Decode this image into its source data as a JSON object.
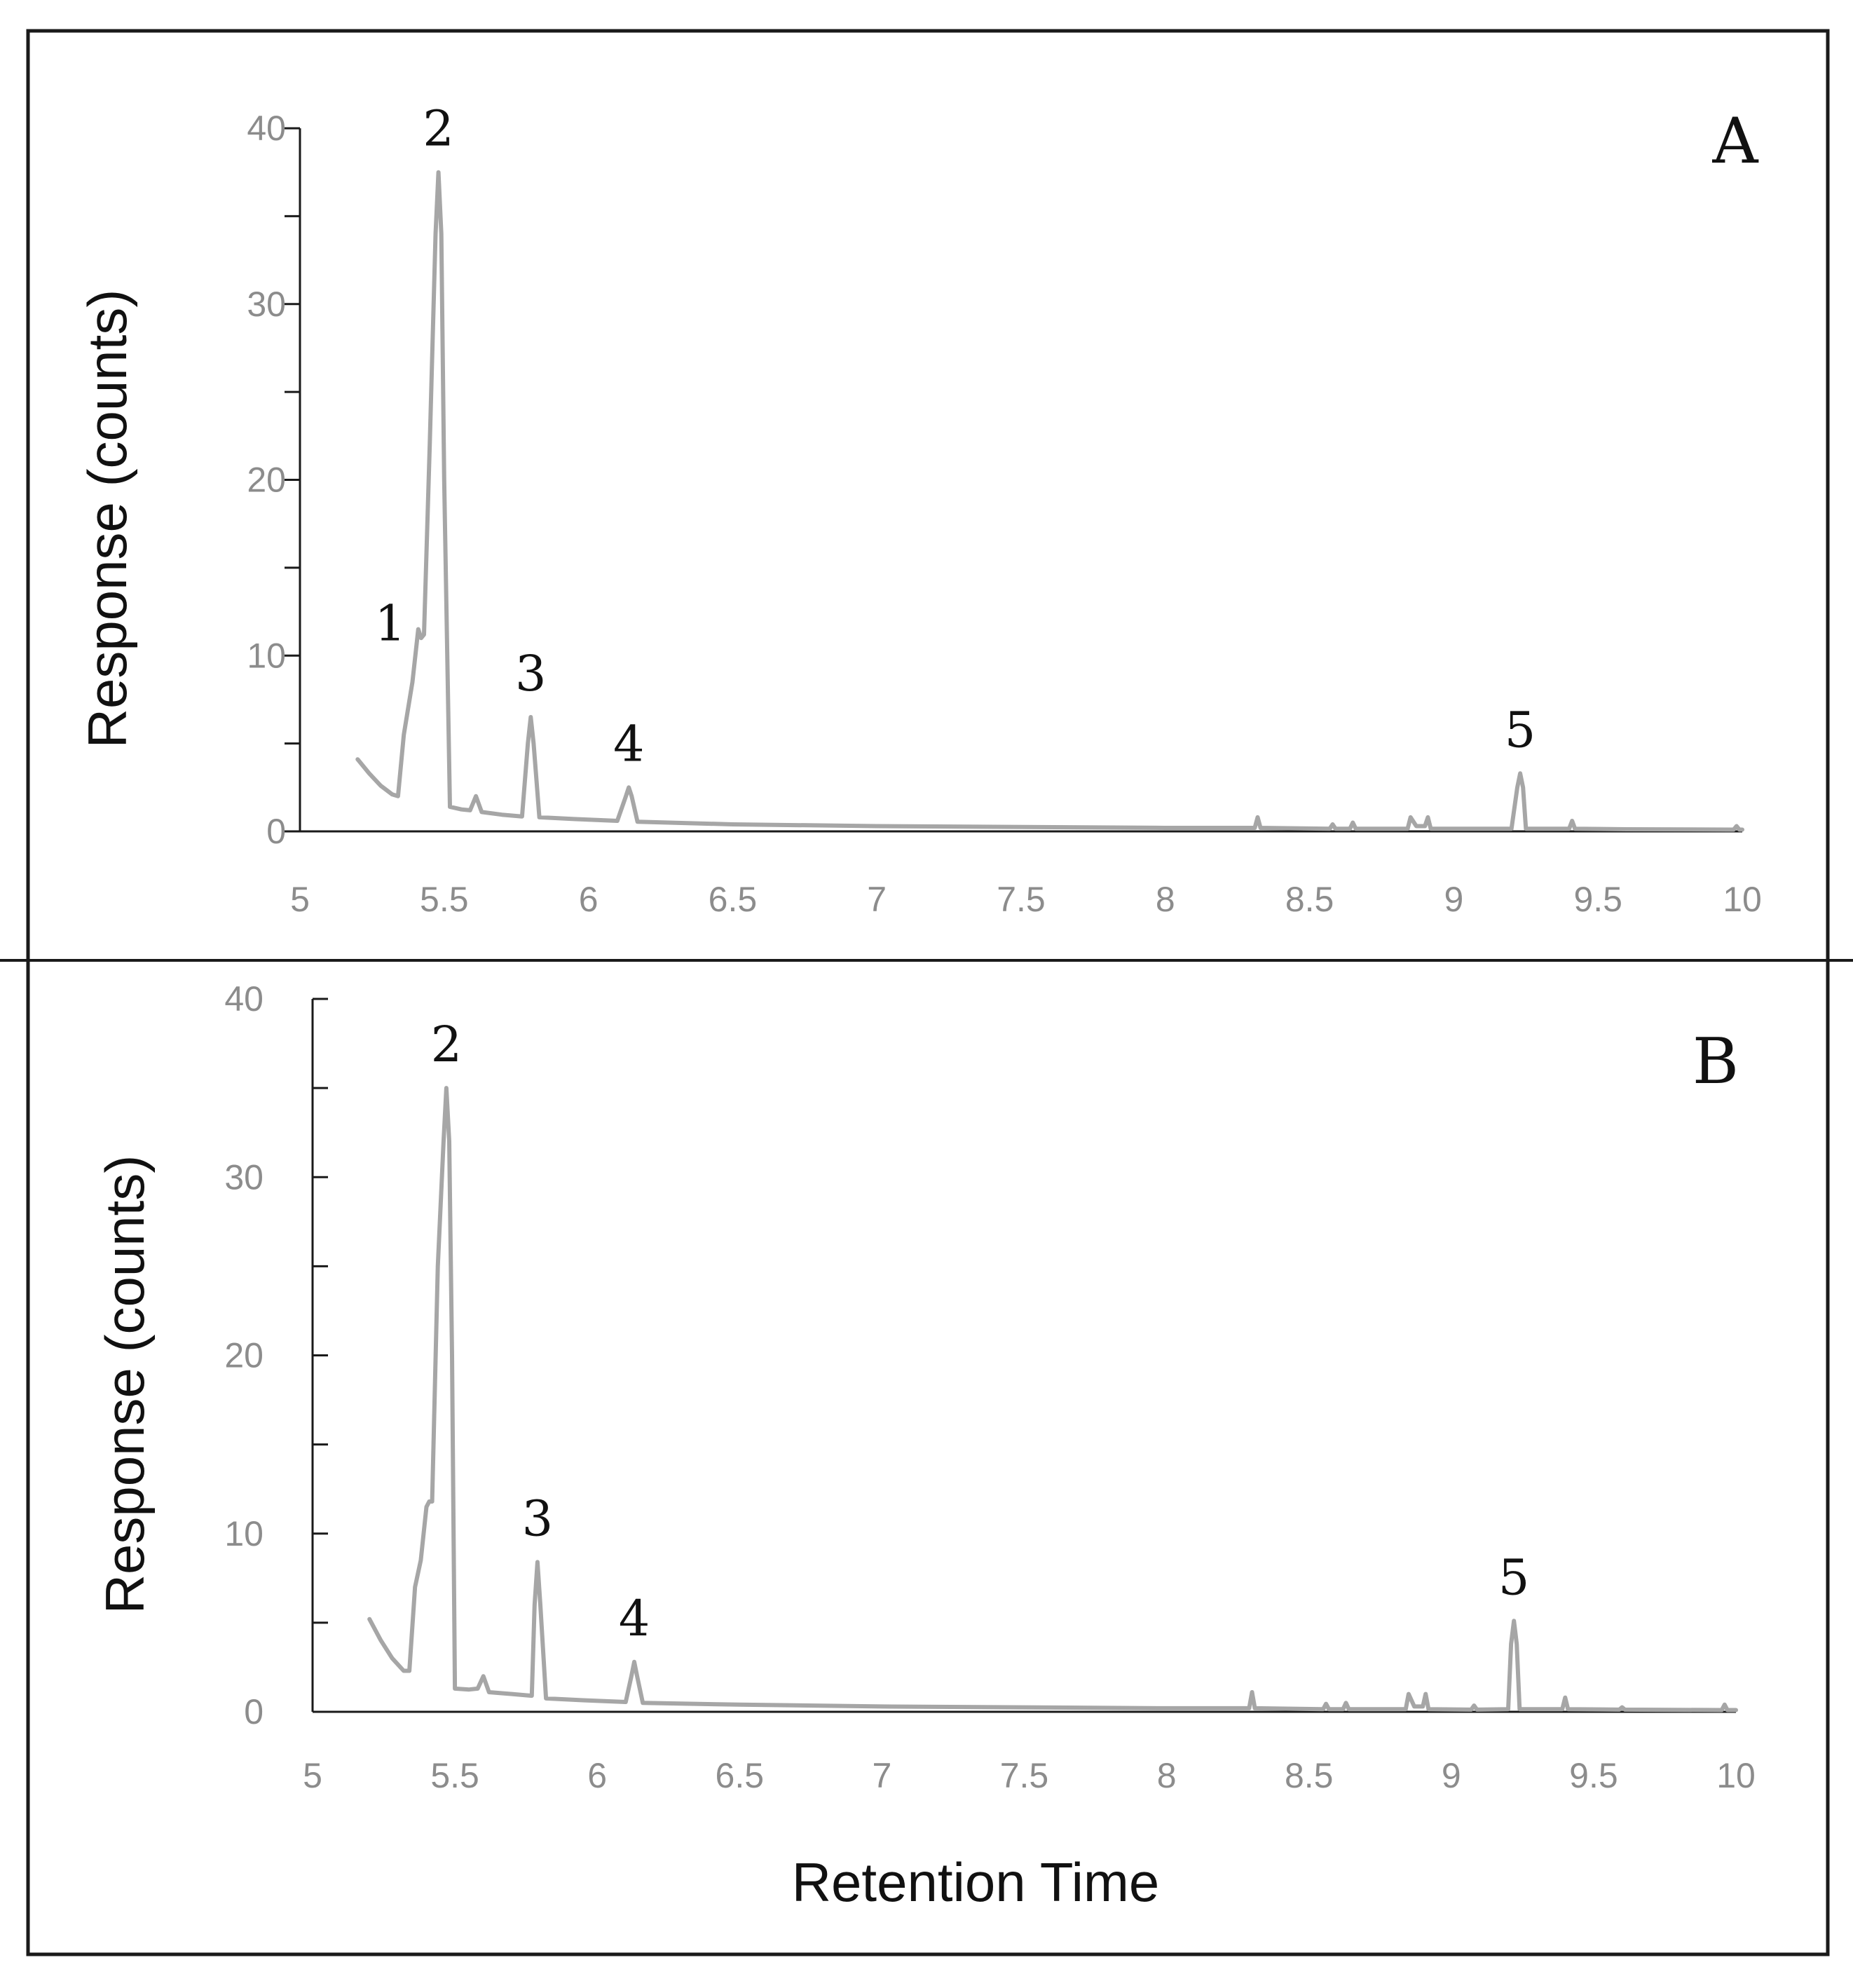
{
  "chart_data": [
    {
      "type": "line",
      "panel": "A",
      "xlabel": "",
      "ylabel": "Response (counts)",
      "xlim": [
        5,
        10
      ],
      "ylim": [
        0,
        40
      ],
      "x_ticks": [
        "5",
        "5.5",
        "6",
        "6.5",
        "7",
        "7.5",
        "8",
        "8.5",
        "9",
        "9.5",
        "10"
      ],
      "y_ticks": [
        "0",
        "10",
        "20",
        "30",
        "40"
      ],
      "peaks": [
        {
          "label": "1",
          "x": 5.41,
          "y": 11.5
        },
        {
          "label": "2",
          "x": 5.48,
          "y": 37.5
        },
        {
          "label": "3",
          "x": 5.8,
          "y": 6.5
        },
        {
          "label": "4",
          "x": 6.14,
          "y": 2.5
        },
        {
          "label": "5",
          "x": 9.23,
          "y": 3.3
        }
      ],
      "trace": [
        [
          5.2,
          4.1
        ],
        [
          5.24,
          3.3
        ],
        [
          5.28,
          2.6
        ],
        [
          5.32,
          2.1
        ],
        [
          5.34,
          2.0
        ],
        [
          5.36,
          5.5
        ],
        [
          5.39,
          8.5
        ],
        [
          5.41,
          11.5
        ],
        [
          5.42,
          11.0
        ],
        [
          5.43,
          11.2
        ],
        [
          5.45,
          22.0
        ],
        [
          5.47,
          34.0
        ],
        [
          5.48,
          37.5
        ],
        [
          5.49,
          34.0
        ],
        [
          5.5,
          20.0
        ],
        [
          5.52,
          1.4
        ],
        [
          5.56,
          1.25
        ],
        [
          5.59,
          1.2
        ],
        [
          5.61,
          2.0
        ],
        [
          5.63,
          1.1
        ],
        [
          5.7,
          0.95
        ],
        [
          5.77,
          0.85
        ],
        [
          5.79,
          5.0
        ],
        [
          5.8,
          6.5
        ],
        [
          5.81,
          5.0
        ],
        [
          5.83,
          0.8
        ],
        [
          5.95,
          0.7
        ],
        [
          6.1,
          0.6
        ],
        [
          6.13,
          2.0
        ],
        [
          6.14,
          2.5
        ],
        [
          6.15,
          2.0
        ],
        [
          6.17,
          0.55
        ],
        [
          6.5,
          0.4
        ],
        [
          7.0,
          0.3
        ],
        [
          8.0,
          0.2
        ],
        [
          8.31,
          0.2
        ],
        [
          8.32,
          0.8
        ],
        [
          8.33,
          0.2
        ],
        [
          8.57,
          0.15
        ],
        [
          8.58,
          0.4
        ],
        [
          8.59,
          0.15
        ],
        [
          8.64,
          0.15
        ],
        [
          8.65,
          0.5
        ],
        [
          8.66,
          0.15
        ],
        [
          8.84,
          0.15
        ],
        [
          8.85,
          0.8
        ],
        [
          8.87,
          0.3
        ],
        [
          8.9,
          0.3
        ],
        [
          8.91,
          0.8
        ],
        [
          8.92,
          0.15
        ],
        [
          9.2,
          0.15
        ],
        [
          9.22,
          2.5
        ],
        [
          9.23,
          3.3
        ],
        [
          9.24,
          2.5
        ],
        [
          9.25,
          0.15
        ],
        [
          9.4,
          0.15
        ],
        [
          9.41,
          0.6
        ],
        [
          9.42,
          0.15
        ],
        [
          9.6,
          0.12
        ],
        [
          9.97,
          0.1
        ],
        [
          9.98,
          0.3
        ],
        [
          9.99,
          0.1
        ],
        [
          10.0,
          0.1
        ]
      ]
    },
    {
      "type": "line",
      "panel": "B",
      "xlabel": "Retention Time",
      "ylabel": "Response (counts)",
      "xlim": [
        5,
        10
      ],
      "ylim": [
        0,
        40
      ],
      "x_ticks": [
        "5",
        "5.5",
        "6",
        "6.5",
        "7",
        "7.5",
        "8",
        "8.5",
        "9",
        "9.5",
        "10"
      ],
      "y_ticks": [
        "0",
        "10",
        "20",
        "30",
        "40"
      ],
      "peaks": [
        {
          "label": "2",
          "x": 5.47,
          "y": 35.0
        },
        {
          "label": "3",
          "x": 5.79,
          "y": 8.4
        },
        {
          "label": "4",
          "x": 6.13,
          "y": 2.8
        },
        {
          "label": "5",
          "x": 9.22,
          "y": 5.1
        }
      ],
      "trace": [
        [
          5.2,
          5.2
        ],
        [
          5.24,
          4.0
        ],
        [
          5.28,
          3.0
        ],
        [
          5.32,
          2.3
        ],
        [
          5.34,
          2.3
        ],
        [
          5.36,
          7.0
        ],
        [
          5.38,
          8.5
        ],
        [
          5.4,
          11.5
        ],
        [
          5.41,
          11.8
        ],
        [
          5.42,
          11.8
        ],
        [
          5.44,
          25.0
        ],
        [
          5.46,
          32.0
        ],
        [
          5.47,
          35.0
        ],
        [
          5.48,
          32.0
        ],
        [
          5.49,
          20.0
        ],
        [
          5.5,
          1.3
        ],
        [
          5.55,
          1.25
        ],
        [
          5.58,
          1.3
        ],
        [
          5.6,
          2.0
        ],
        [
          5.62,
          1.1
        ],
        [
          5.7,
          1.0
        ],
        [
          5.77,
          0.9
        ],
        [
          5.78,
          6.0
        ],
        [
          5.79,
          8.4
        ],
        [
          5.8,
          6.0
        ],
        [
          5.82,
          0.75
        ],
        [
          5.95,
          0.65
        ],
        [
          6.1,
          0.55
        ],
        [
          6.12,
          2.0
        ],
        [
          6.13,
          2.8
        ],
        [
          6.14,
          2.0
        ],
        [
          6.16,
          0.5
        ],
        [
          6.5,
          0.4
        ],
        [
          7.0,
          0.3
        ],
        [
          8.0,
          0.2
        ],
        [
          8.29,
          0.2
        ],
        [
          8.3,
          1.1
        ],
        [
          8.31,
          0.2
        ],
        [
          8.55,
          0.15
        ],
        [
          8.56,
          0.45
        ],
        [
          8.57,
          0.15
        ],
        [
          8.62,
          0.15
        ],
        [
          8.63,
          0.5
        ],
        [
          8.64,
          0.15
        ],
        [
          8.84,
          0.15
        ],
        [
          8.85,
          1.0
        ],
        [
          8.87,
          0.3
        ],
        [
          8.9,
          0.3
        ],
        [
          8.91,
          1.0
        ],
        [
          8.92,
          0.15
        ],
        [
          9.07,
          0.12
        ],
        [
          9.08,
          0.35
        ],
        [
          9.09,
          0.12
        ],
        [
          9.2,
          0.15
        ],
        [
          9.21,
          3.8
        ],
        [
          9.22,
          5.1
        ],
        [
          9.23,
          3.8
        ],
        [
          9.24,
          0.15
        ],
        [
          9.39,
          0.15
        ],
        [
          9.4,
          0.8
        ],
        [
          9.41,
          0.15
        ],
        [
          9.59,
          0.12
        ],
        [
          9.6,
          0.25
        ],
        [
          9.61,
          0.12
        ],
        [
          9.95,
          0.1
        ],
        [
          9.96,
          0.4
        ],
        [
          9.97,
          0.1
        ],
        [
          10.0,
          0.1
        ]
      ]
    }
  ]
}
